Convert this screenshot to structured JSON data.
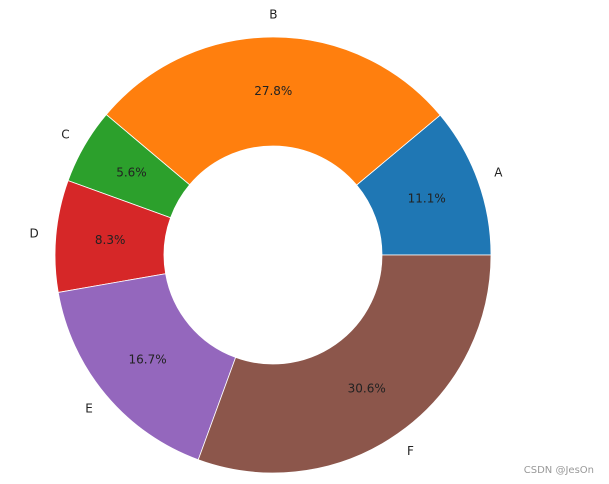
{
  "chart_data": {
    "type": "pie",
    "categories": [
      "A",
      "B",
      "C",
      "D",
      "E",
      "F"
    ],
    "values": [
      11.1,
      27.8,
      5.6,
      8.3,
      16.7,
      30.6
    ],
    "value_labels": [
      "11.1%",
      "27.8%",
      "5.6%",
      "8.3%",
      "16.7%",
      "30.6%"
    ],
    "colors": [
      "#1f77b4",
      "#ff7f0e",
      "#2ca02c",
      "#d62728",
      "#9467bd",
      "#8c564b"
    ]
  },
  "watermark": "CSDN @JesOn"
}
